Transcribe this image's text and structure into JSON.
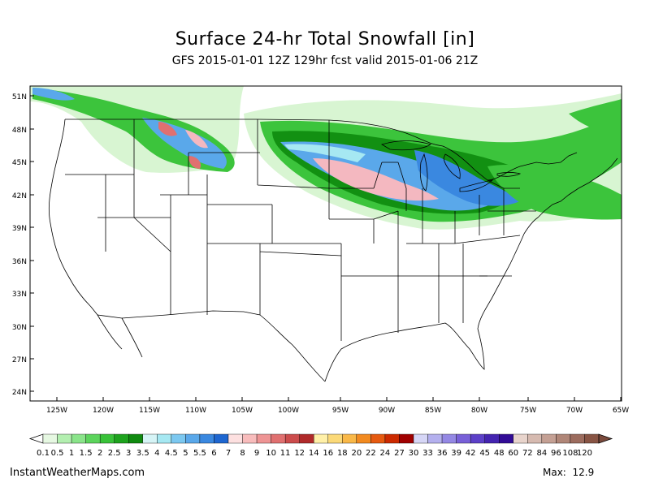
{
  "title": "Surface 24-hr Total Snowfall [in]",
  "subtitle": "GFS 2015-01-01 12Z 129hr fcst valid 2015-01-06 21Z",
  "lat_labels": [
    "51N",
    "48N",
    "45N",
    "42N",
    "39N",
    "36N",
    "33N",
    "30N",
    "27N",
    "24N"
  ],
  "lon_labels": [
    "125W",
    "120W",
    "115W",
    "110W",
    "105W",
    "100W",
    "95W",
    "90W",
    "85W",
    "80W",
    "75W",
    "70W",
    "65W"
  ],
  "colorbar": {
    "labels": [
      "0.1",
      "0.5",
      "1",
      "1.5",
      "2",
      "2.5",
      "3",
      "3.5",
      "4",
      "4.5",
      "5",
      "5.5",
      "6",
      "7",
      "8",
      "9",
      "10",
      "11",
      "12",
      "14",
      "16",
      "18",
      "20",
      "22",
      "24",
      "27",
      "30",
      "33",
      "36",
      "39",
      "42",
      "45",
      "48",
      "60",
      "72",
      "84",
      "96",
      "108",
      "120"
    ],
    "colors": [
      "#e6f8e2",
      "#b3efb0",
      "#8ae48a",
      "#5cd45c",
      "#39c239",
      "#1ea31e",
      "#108a10",
      "#d6f4f6",
      "#a6e8f2",
      "#7cc8f0",
      "#5aa8ea",
      "#3a88e0",
      "#1e66d0",
      "#fde0e0",
      "#f8bcbc",
      "#ee9494",
      "#e07070",
      "#cc4c4c",
      "#b02a2a",
      "#fff0a8",
      "#fbd978",
      "#f9b848",
      "#f28a20",
      "#e65a10",
      "#cc2a00",
      "#a00000",
      "#d6d6f6",
      "#b4b0ee",
      "#9488e4",
      "#7860d8",
      "#5c40c8",
      "#4424b0",
      "#320c96",
      "#e8d4cc",
      "#d6bab0",
      "#c4a094",
      "#b08678",
      "#9c6c5e",
      "#885444"
    ]
  },
  "footer_left": "InstantWeatherMaps.com",
  "footer_right": "Max:  12.9"
}
